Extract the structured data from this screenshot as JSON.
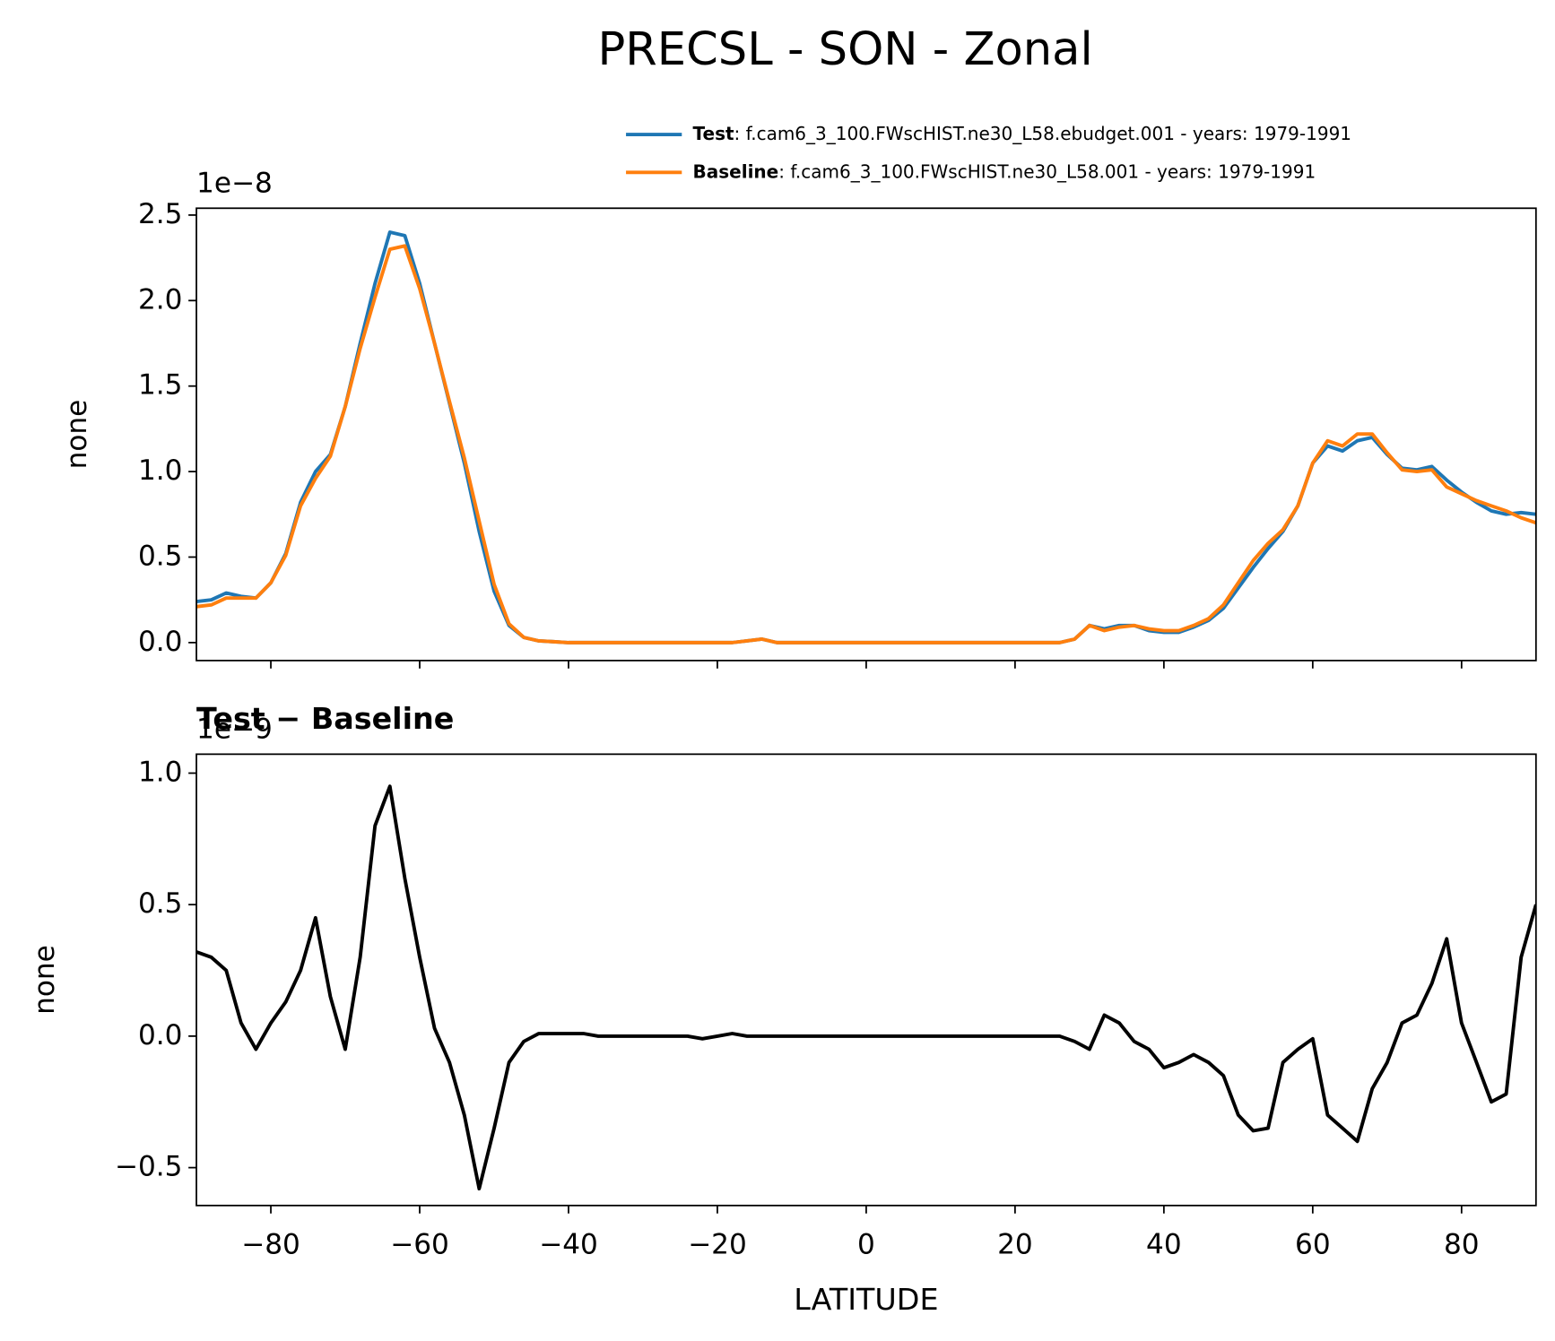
{
  "chart_data": [
    {
      "type": "line",
      "title": "PRECSL - SON - Zonal",
      "offset_label": "1e−8",
      "ylabel": "none",
      "x": [
        -90,
        -88,
        -86,
        -84,
        -82,
        -80,
        -78,
        -76,
        -74,
        -72,
        -70,
        -68,
        -66,
        -64,
        -62,
        -60,
        -58,
        -56,
        -54,
        -52,
        -50,
        -48,
        -46,
        -44,
        -42,
        -40,
        -38,
        -36,
        -34,
        -32,
        -30,
        -28,
        -26,
        -24,
        -22,
        -20,
        -18,
        -16,
        -14,
        -12,
        -10,
        -8,
        -6,
        -4,
        -2,
        0,
        2,
        4,
        6,
        8,
        10,
        12,
        14,
        16,
        18,
        20,
        22,
        24,
        26,
        28,
        30,
        32,
        34,
        36,
        38,
        40,
        42,
        44,
        46,
        48,
        50,
        52,
        54,
        56,
        58,
        60,
        62,
        64,
        66,
        68,
        70,
        72,
        74,
        76,
        78,
        80,
        82,
        84,
        86,
        88,
        90
      ],
      "series": [
        {
          "name": "Test",
          "legend_label": ": f.cam6_3_100.FWscHIST.ne30_L58.ebudget.001 - years: 1979-1991",
          "color": "#1f77b4",
          "values": [
            0.24,
            0.25,
            0.29,
            0.27,
            0.26,
            0.35,
            0.52,
            0.82,
            1.0,
            1.1,
            1.38,
            1.75,
            2.1,
            2.4,
            2.38,
            2.1,
            1.75,
            1.4,
            1.05,
            0.65,
            0.3,
            0.1,
            0.03,
            0.01,
            0.005,
            0,
            0,
            0,
            0,
            0,
            0,
            0,
            0,
            0,
            0,
            0,
            0,
            0.01,
            0.02,
            0,
            0,
            0,
            0,
            0,
            0,
            0,
            0,
            0,
            0,
            0,
            0,
            0,
            0,
            0,
            0,
            0,
            0,
            0,
            0,
            0.02,
            0.1,
            0.08,
            0.1,
            0.1,
            0.07,
            0.06,
            0.06,
            0.09,
            0.13,
            0.2,
            0.32,
            0.44,
            0.55,
            0.65,
            0.8,
            1.05,
            1.15,
            1.12,
            1.18,
            1.2,
            1.1,
            1.02,
            1.01,
            1.03,
            0.95,
            0.88,
            0.82,
            0.77,
            0.75,
            0.76,
            0.75
          ]
        },
        {
          "name": "Baseline",
          "legend_label": ": f.cam6_3_100.FWscHIST.ne30_L58.001 - years: 1979-1991",
          "color": "#ff7f0e",
          "values": [
            0.21,
            0.22,
            0.26,
            0.26,
            0.26,
            0.35,
            0.51,
            0.8,
            0.96,
            1.09,
            1.38,
            1.72,
            2.02,
            2.3,
            2.32,
            2.07,
            1.75,
            1.41,
            1.08,
            0.71,
            0.34,
            0.11,
            0.03,
            0.01,
            0.005,
            0,
            0,
            0,
            0,
            0,
            0,
            0,
            0,
            0,
            0,
            0,
            0,
            0.01,
            0.02,
            0,
            0,
            0,
            0,
            0,
            0,
            0,
            0,
            0,
            0,
            0,
            0,
            0,
            0,
            0,
            0,
            0,
            0,
            0,
            0,
            0.02,
            0.1,
            0.07,
            0.09,
            0.1,
            0.08,
            0.07,
            0.07,
            0.1,
            0.14,
            0.22,
            0.35,
            0.48,
            0.58,
            0.66,
            0.8,
            1.05,
            1.18,
            1.15,
            1.22,
            1.22,
            1.11,
            1.01,
            1.0,
            1.01,
            0.91,
            0.87,
            0.83,
            0.8,
            0.77,
            0.73,
            0.7
          ]
        }
      ],
      "xlim": [
        -90,
        90
      ],
      "xticks": [
        {
          "value": -80,
          "label": "−80"
        },
        {
          "value": -60,
          "label": "−60"
        },
        {
          "value": -40,
          "label": "−40"
        },
        {
          "value": -20,
          "label": "−20"
        },
        0,
        20,
        40,
        60,
        80
      ],
      "ylim": [
        -0.105,
        2.54
      ],
      "yticks": [
        {
          "value": 0,
          "label": "0.0"
        },
        0.5,
        {
          "value": 1,
          "label": "1.0"
        },
        1.5,
        {
          "value": 2,
          "label": "2.0"
        },
        2.5
      ]
    },
    {
      "type": "line",
      "title": "Test − Baseline",
      "offset_label": "1e−9",
      "ylabel": "none",
      "xlabel": "LATITUDE",
      "x": [
        -90,
        -88,
        -86,
        -84,
        -82,
        -80,
        -78,
        -76,
        -74,
        -72,
        -70,
        -68,
        -66,
        -64,
        -62,
        -60,
        -58,
        -56,
        -54,
        -52,
        -50,
        -48,
        -46,
        -44,
        -42,
        -40,
        -38,
        -36,
        -34,
        -32,
        -30,
        -28,
        -26,
        -24,
        -22,
        -20,
        -18,
        -16,
        -14,
        -12,
        -10,
        -8,
        -6,
        -4,
        -2,
        0,
        2,
        4,
        6,
        8,
        10,
        12,
        14,
        16,
        18,
        20,
        22,
        24,
        26,
        28,
        30,
        32,
        34,
        36,
        38,
        40,
        42,
        44,
        46,
        48,
        50,
        52,
        54,
        56,
        58,
        60,
        62,
        64,
        66,
        68,
        70,
        72,
        74,
        76,
        78,
        80,
        82,
        84,
        86,
        88,
        90
      ],
      "series": [
        {
          "color": "#000000",
          "values": [
            0.32,
            0.3,
            0.25,
            0.05,
            -0.05,
            0.05,
            0.13,
            0.25,
            0.45,
            0.15,
            -0.05,
            0.3,
            0.8,
            0.95,
            0.6,
            0.3,
            0.03,
            -0.1,
            -0.3,
            -0.58,
            -0.35,
            -0.1,
            -0.02,
            0.01,
            0.01,
            0.01,
            0.01,
            0,
            0,
            0,
            0,
            0,
            0,
            0,
            -0.01,
            0,
            0.01,
            0,
            0,
            0,
            0,
            0,
            0,
            0,
            0,
            0,
            0,
            0,
            0,
            0,
            0,
            0,
            0,
            0,
            0,
            0,
            0,
            0,
            0,
            -0.02,
            -0.05,
            0.08,
            0.05,
            -0.02,
            -0.05,
            -0.12,
            -0.1,
            -0.07,
            -0.1,
            -0.15,
            -0.3,
            -0.36,
            -0.35,
            -0.1,
            -0.05,
            -0.01,
            -0.3,
            -0.35,
            -0.4,
            -0.2,
            -0.1,
            0.05,
            0.08,
            0.2,
            0.37,
            0.05,
            -0.1,
            -0.25,
            -0.22,
            0.3,
            0.5
          ]
        }
      ],
      "xlim": [
        -90,
        90
      ],
      "xticks": [
        {
          "value": -80,
          "label": "−80"
        },
        {
          "value": -60,
          "label": "−60"
        },
        {
          "value": -40,
          "label": "−40"
        },
        {
          "value": -20,
          "label": "−20"
        },
        0,
        20,
        40,
        60,
        80
      ],
      "ylim": [
        -0.644,
        1.072
      ],
      "yticks": [
        {
          "value": -0.5,
          "label": "−0.5"
        },
        {
          "value": 0,
          "label": "0.0"
        },
        0.5,
        {
          "value": 1,
          "label": "1.0"
        }
      ]
    }
  ]
}
